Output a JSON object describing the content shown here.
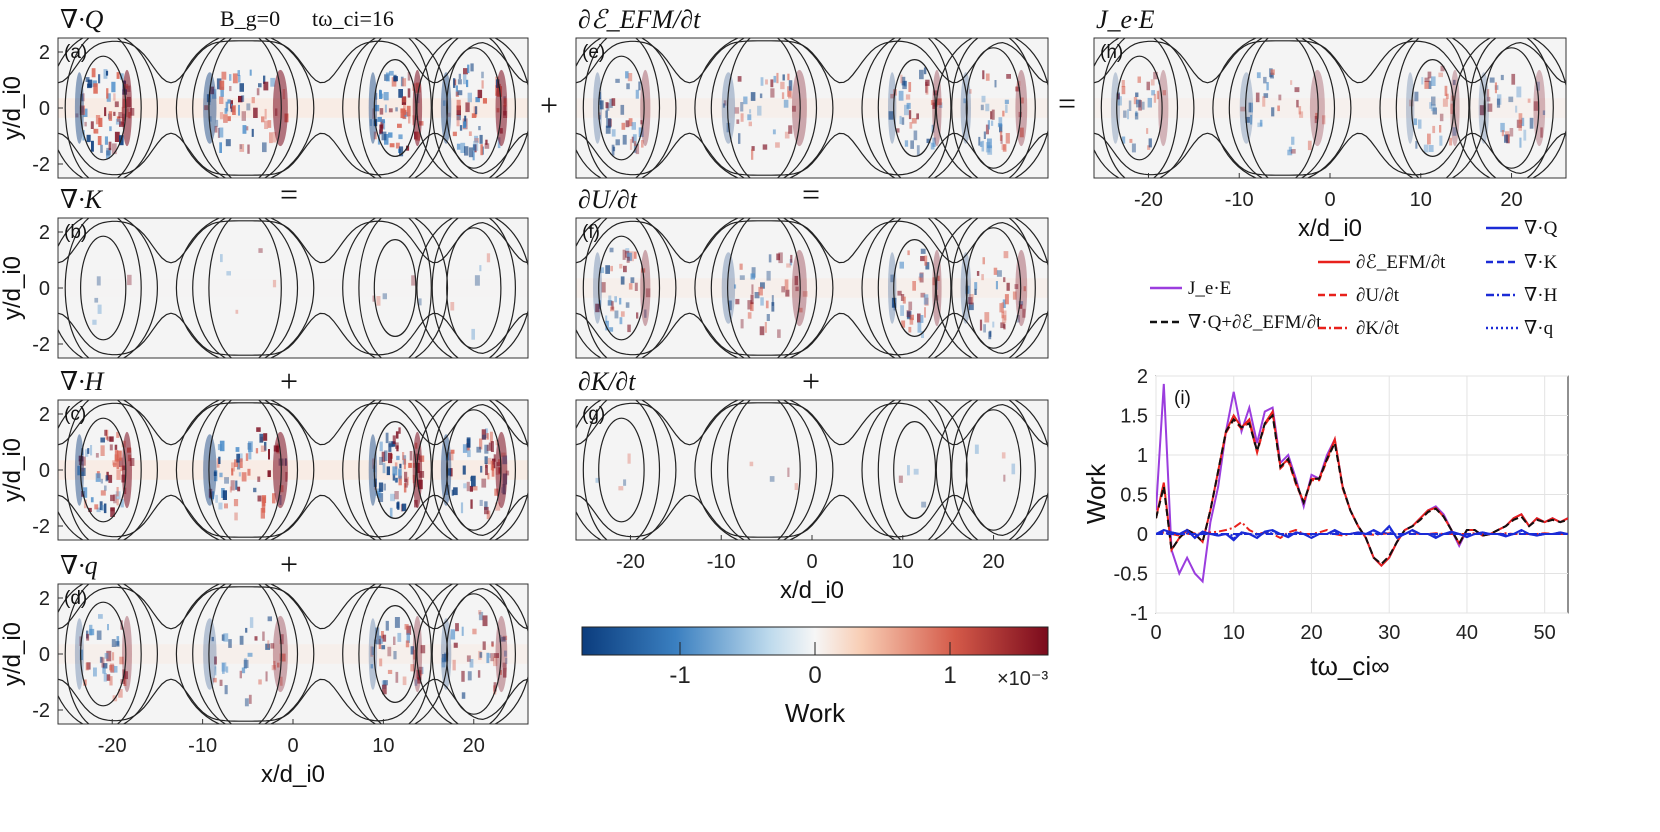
{
  "header": {
    "bg": "B_g=0",
    "time": "tω_ci=16"
  },
  "operators": {
    "plus_top": "+",
    "equals_top": "=",
    "equals_b": "=",
    "equals_f": "=",
    "plus_c": "+",
    "plus_g": "+",
    "plus_d": "+"
  },
  "colors": {
    "negative": "#0b3c7d",
    "positive": "#7a0a1c",
    "contour": "#222222",
    "purple": "#9b3dde",
    "red": "#e8211c",
    "blue": "#1b2bd6"
  },
  "panels": [
    {
      "id": "a",
      "title": "∇·Q",
      "label": "(a)",
      "ylabel": "y/d_i0",
      "yticks": [
        "2",
        "0",
        "-2"
      ]
    },
    {
      "id": "b",
      "title": "∇·K",
      "label": "(b)",
      "ylabel": "y/d_i0",
      "yticks": [
        "2",
        "0",
        "-2"
      ]
    },
    {
      "id": "c",
      "title": "∇·H",
      "label": "(c)",
      "ylabel": "y/d_i0",
      "yticks": [
        "2",
        "0",
        "-2"
      ]
    },
    {
      "id": "d",
      "title": "∇·q",
      "label": "(d)",
      "ylabel": "y/d_i0",
      "yticks": [
        "2",
        "0",
        "-2"
      ],
      "xlabel": "x/d_i0",
      "xticks": [
        "-20",
        "-10",
        "0",
        "10",
        "20"
      ]
    },
    {
      "id": "e",
      "title": "∂ℰ_EFM/∂t",
      "label": "(e)"
    },
    {
      "id": "f",
      "title": "∂U/∂t",
      "label": "(f)"
    },
    {
      "id": "g",
      "title": "∂K/∂t",
      "label": "(g)",
      "xlabel": "x/d_i0",
      "xticks": [
        "-20",
        "-10",
        "0",
        "10",
        "20"
      ]
    },
    {
      "id": "h",
      "title": "J_e·E",
      "label": "(h)",
      "xlabel": "x/d_i0",
      "xticks": [
        "-20",
        "-10",
        "0",
        "10",
        "20"
      ]
    }
  ],
  "colorbar": {
    "label": "Work",
    "ticks": [
      "-1",
      "0",
      "1"
    ],
    "multiplier": "×10⁻³",
    "range": [
      -1.75,
      1.75
    ],
    "colormap": "blue-white-red"
  },
  "chart_data": {
    "type": "line",
    "panel_label": "(i)",
    "xlabel": "tω_ci∞",
    "ylabel": "Work",
    "xlim": [
      0,
      53
    ],
    "ylim": [
      -1,
      2
    ],
    "xticks": [
      0,
      10,
      20,
      30,
      40,
      50
    ],
    "yticks": [
      -1,
      -0.5,
      0,
      0.5,
      1,
      1.5,
      2
    ],
    "grid": true,
    "legend_placement": "above plot",
    "x": [
      0,
      1,
      2,
      3,
      4,
      5,
      6,
      7,
      8,
      9,
      10,
      11,
      12,
      13,
      14,
      15,
      16,
      17,
      18,
      19,
      20,
      21,
      22,
      23,
      24,
      25,
      26,
      27,
      28,
      29,
      30,
      31,
      32,
      33,
      34,
      35,
      36,
      37,
      38,
      39,
      40,
      41,
      42,
      43,
      44,
      45,
      46,
      47,
      48,
      49,
      50,
      51,
      52,
      53
    ],
    "series": [
      {
        "name": "J_e·E",
        "color": "#9b3dde",
        "dash": "solid",
        "values": [
          0.3,
          1.9,
          -0.2,
          -0.5,
          -0.3,
          -0.5,
          -0.6,
          0.15,
          0.6,
          1.3,
          1.8,
          1.3,
          1.6,
          1.15,
          1.55,
          1.6,
          0.9,
          1.0,
          0.7,
          0.35,
          0.75,
          0.7,
          1.0,
          1.2,
          0.6,
          0.3,
          0.1,
          -0.05,
          -0.3,
          -0.4,
          -0.3,
          -0.1,
          0.05,
          0.1,
          0.2,
          0.3,
          0.35,
          0.25,
          0.05,
          -0.15,
          0.05,
          0.05,
          -0.02,
          0.0,
          0.05,
          0.1,
          0.2,
          0.25,
          0.1,
          0.2,
          0.15,
          0.2,
          0.15,
          0.2
        ]
      },
      {
        "name": "∇·Q+∂ℰ_EFM/∂t",
        "color": "#111111",
        "dash": "dashed",
        "values": [
          0.2,
          0.6,
          -0.2,
          -0.05,
          0.05,
          0.0,
          -0.1,
          0.3,
          0.8,
          1.3,
          1.45,
          1.35,
          1.4,
          1.05,
          1.4,
          1.5,
          0.85,
          0.95,
          0.65,
          0.4,
          0.7,
          0.7,
          0.95,
          1.15,
          0.6,
          0.3,
          0.1,
          -0.05,
          -0.3,
          -0.38,
          -0.28,
          -0.1,
          0.05,
          0.1,
          0.18,
          0.28,
          0.32,
          0.22,
          0.05,
          -0.12,
          0.05,
          0.05,
          -0.02,
          0.0,
          0.05,
          0.1,
          0.18,
          0.22,
          0.1,
          0.18,
          0.15,
          0.18,
          0.15,
          0.18
        ]
      },
      {
        "name": "∂ℰ_EFM/∂t",
        "color": "#e8211c",
        "dash": "solid",
        "values": [
          0.2,
          0.65,
          -0.2,
          -0.05,
          0.05,
          0.0,
          -0.1,
          0.3,
          0.8,
          1.3,
          1.5,
          1.35,
          1.45,
          1.05,
          1.4,
          1.55,
          0.85,
          0.95,
          0.65,
          0.4,
          0.7,
          0.7,
          0.95,
          1.2,
          0.6,
          0.3,
          0.1,
          -0.05,
          -0.3,
          -0.4,
          -0.3,
          -0.1,
          0.05,
          0.1,
          0.2,
          0.3,
          0.33,
          0.22,
          0.05,
          -0.12,
          0.05,
          0.05,
          -0.02,
          0.0,
          0.05,
          0.1,
          0.2,
          0.25,
          0.1,
          0.2,
          0.15,
          0.2,
          0.15,
          0.2
        ]
      },
      {
        "name": "∂U/∂t",
        "color": "#e8211c",
        "dash": "dashed",
        "values": [
          0.2,
          0.6,
          -0.2,
          -0.05,
          0.05,
          0.0,
          -0.1,
          0.3,
          0.78,
          1.28,
          1.45,
          1.33,
          1.42,
          1.03,
          1.38,
          1.52,
          0.83,
          0.93,
          0.63,
          0.4,
          0.68,
          0.68,
          0.93,
          1.16,
          0.58,
          0.3,
          0.1,
          -0.05,
          -0.3,
          -0.38,
          -0.28,
          -0.1,
          0.05,
          0.1,
          0.18,
          0.28,
          0.32,
          0.22,
          0.05,
          -0.12,
          0.05,
          0.05,
          -0.02,
          0.0,
          0.05,
          0.1,
          0.18,
          0.22,
          0.1,
          0.18,
          0.15,
          0.18,
          0.15,
          0.18
        ]
      },
      {
        "name": "∂K/∂t",
        "color": "#e8211c",
        "dash": "dashdot",
        "values": [
          0.0,
          0.02,
          0.0,
          -0.02,
          0.0,
          0.01,
          0.0,
          0.02,
          0.03,
          0.05,
          0.08,
          0.15,
          0.05,
          0.0,
          0.02,
          0.0,
          -0.05,
          0.02,
          0.05,
          0.0,
          0.0,
          0.02,
          0.05,
          0.0,
          -0.02,
          0.0,
          0.02,
          0.0,
          -0.01,
          0.0,
          0.01,
          0.0,
          0.0,
          0.01,
          0.0,
          0.0,
          0.01,
          0.0,
          0.0,
          0.0,
          0.0,
          0.01,
          0.0,
          0.0,
          0.0,
          0.01,
          0.0,
          0.0,
          0.0,
          0.0,
          0.01,
          0.0,
          0.0,
          0.0
        ]
      },
      {
        "name": "∇·Q",
        "color": "#1b2bd6",
        "dash": "solid",
        "values": [
          0.0,
          0.05,
          0.02,
          0.0,
          0.05,
          -0.05,
          0.03,
          0.0,
          -0.02,
          0.0,
          -0.08,
          0.02,
          0.0,
          -0.05,
          0.03,
          0.05,
          0.0,
          -0.04,
          0.02,
          0.0,
          -0.05,
          0.0,
          0.0,
          0.05,
          0.0,
          0.0,
          0.02,
          0.0,
          0.05,
          0.0,
          0.1,
          -0.05,
          0.0,
          0.05,
          0.0,
          0.0,
          -0.05,
          0.0,
          0.03,
          0.0,
          -0.04,
          0.0,
          0.02,
          0.0,
          0.0,
          -0.03,
          0.0,
          0.05,
          0.0,
          -0.02,
          0.0,
          0.0,
          0.02,
          0.0
        ]
      },
      {
        "name": "∇·K",
        "color": "#1b2bd6",
        "dash": "dashed",
        "values": [
          0.0,
          0.0,
          0.0,
          0.0,
          0.0,
          0.0,
          0.0,
          0.0,
          0.0,
          0.0,
          0.0,
          0.0,
          0.0,
          0.0,
          0.0,
          0.0,
          0.0,
          0.0,
          0.0,
          0.0,
          0.0,
          0.0,
          0.0,
          0.0,
          0.0,
          0.0,
          0.0,
          0.0,
          0.0,
          0.0,
          0.0,
          0.0,
          0.0,
          0.0,
          0.0,
          0.0,
          0.0,
          0.0,
          0.0,
          0.0,
          0.0,
          0.0,
          0.0,
          0.0,
          0.0,
          0.0,
          0.0,
          0.0,
          0.0,
          0.0,
          0.0,
          0.0,
          0.0,
          0.0
        ]
      },
      {
        "name": "∇·H",
        "color": "#1b2bd6",
        "dash": "dashdot",
        "values": [
          0.0,
          0.04,
          0.02,
          0.0,
          0.04,
          -0.04,
          0.03,
          0.0,
          -0.02,
          0.0,
          -0.06,
          0.02,
          0.0,
          -0.04,
          0.02,
          0.04,
          0.0,
          -0.03,
          0.02,
          0.0,
          -0.04,
          0.0,
          0.0,
          0.04,
          0.0,
          0.0,
          0.02,
          0.0,
          0.04,
          0.0,
          0.08,
          -0.04,
          0.0,
          0.04,
          0.0,
          0.0,
          -0.04,
          0.0,
          0.02,
          0.0,
          -0.03,
          0.0,
          0.02,
          0.0,
          0.0,
          -0.02,
          0.0,
          0.04,
          0.0,
          -0.02,
          0.0,
          0.0,
          0.02,
          0.0
        ]
      },
      {
        "name": "∇·q",
        "color": "#1b2bd6",
        "dash": "dotted",
        "values": [
          0.0,
          0.01,
          0.0,
          0.0,
          0.01,
          -0.01,
          0.0,
          0.0,
          0.0,
          0.0,
          -0.02,
          0.0,
          0.0,
          -0.01,
          0.01,
          0.01,
          0.0,
          -0.01,
          0.0,
          0.0,
          -0.01,
          0.0,
          0.0,
          0.01,
          0.0,
          0.0,
          0.0,
          0.0,
          0.01,
          0.0,
          0.02,
          -0.01,
          0.0,
          0.01,
          0.0,
          0.0,
          -0.01,
          0.0,
          0.01,
          0.0,
          -0.01,
          0.0,
          0.0,
          0.0,
          0.0,
          -0.01,
          0.0,
          0.01,
          0.0,
          0.0,
          0.0,
          0.0,
          0.0,
          0.0
        ]
      }
    ]
  }
}
